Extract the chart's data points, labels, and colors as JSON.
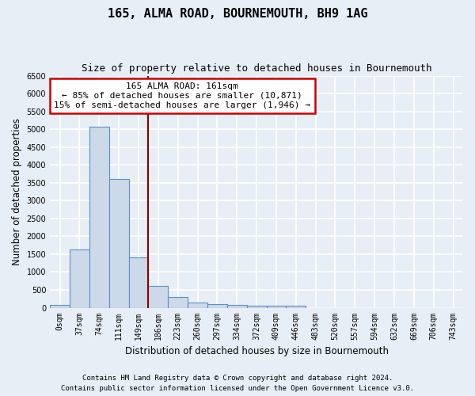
{
  "title": "165, ALMA ROAD, BOURNEMOUTH, BH9 1AG",
  "subtitle": "Size of property relative to detached houses in Bournemouth",
  "xlabel": "Distribution of detached houses by size in Bournemouth",
  "ylabel": "Number of detached properties",
  "footer_line1": "Contains HM Land Registry data © Crown copyright and database right 2024.",
  "footer_line2": "Contains public sector information licensed under the Open Government Licence v3.0.",
  "bar_labels": [
    "0sqm",
    "37sqm",
    "74sqm",
    "111sqm",
    "149sqm",
    "186sqm",
    "223sqm",
    "260sqm",
    "297sqm",
    "334sqm",
    "372sqm",
    "409sqm",
    "446sqm",
    "483sqm",
    "520sqm",
    "557sqm",
    "594sqm",
    "632sqm",
    "669sqm",
    "706sqm",
    "743sqm"
  ],
  "bar_values": [
    75,
    1640,
    5060,
    3600,
    1410,
    620,
    295,
    145,
    100,
    75,
    55,
    60,
    55,
    0,
    0,
    0,
    0,
    0,
    0,
    0,
    0
  ],
  "bar_color": "#ccd9e8",
  "bar_edge_color": "#5b8fc9",
  "vline_x": 4.5,
  "vline_color": "#8b0000",
  "annotation_text": "165 ALMA ROAD: 161sqm\n← 85% of detached houses are smaller (10,871)\n15% of semi-detached houses are larger (1,946) →",
  "annotation_box_color": "white",
  "annotation_box_edge_color": "#cc0000",
  "ylim": [
    0,
    6500
  ],
  "yticks": [
    0,
    500,
    1000,
    1500,
    2000,
    2500,
    3000,
    3500,
    4000,
    4500,
    5000,
    5500,
    6000,
    6500
  ],
  "bg_color": "#e8eef5",
  "grid_color": "white",
  "title_fontsize": 11,
  "subtitle_fontsize": 9,
  "axis_label_fontsize": 8.5,
  "tick_fontsize": 7,
  "footer_fontsize": 6.5
}
